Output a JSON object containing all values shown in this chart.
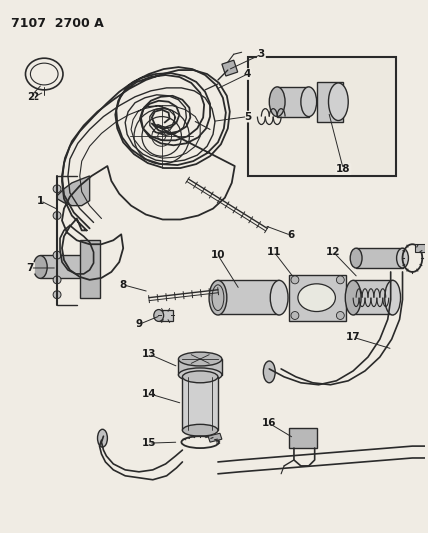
{
  "title": "7107  2700 A",
  "bg_color": "#f0ece4",
  "line_color": "#2a2a2a",
  "text_color": "#1a1a1a",
  "title_fontsize": 9,
  "label_fontsize": 7.5
}
